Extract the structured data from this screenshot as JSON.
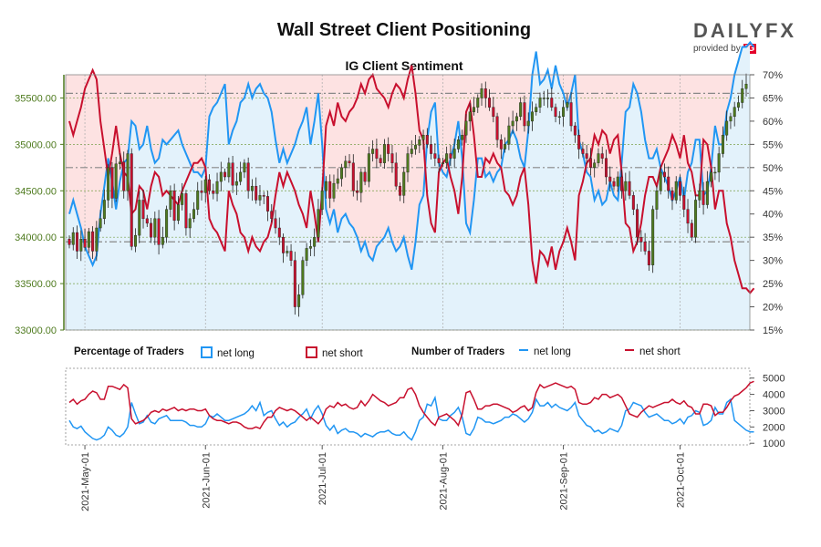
{
  "header": {
    "title": "Wall Street Client Positioning",
    "logo_text": "DAILYFX",
    "logo_sub": "provided by",
    "logo_ig": "IG"
  },
  "colors": {
    "long": "#2196f3",
    "short": "#c8102e",
    "long_fill": "#e3f2fb",
    "short_fill": "#fde2e2",
    "candle_up": "#4e7a1e",
    "candle_down": "#c8102e",
    "axis_green": "#4e7a1e"
  },
  "legend": {
    "pct_label": "Percentage of Traders",
    "pct_long": "net long",
    "pct_short": "net short",
    "num_label": "Number of Traders",
    "num_long": "net long",
    "num_short": "net short"
  },
  "chart_data": {
    "type": "candlestick + line",
    "title": "IG Client Sentiment",
    "price_axis": {
      "ylim": [
        33000,
        35750
      ],
      "ticks": [
        "33000.00",
        "33500.00",
        "34000.00",
        "34500.00",
        "35000.00",
        "35500.00"
      ]
    },
    "sentiment_axis": {
      "ylim": [
        15,
        70
      ],
      "ticks": [
        "15%",
        "20%",
        "25%",
        "30%",
        "35%",
        "40%",
        "45%",
        "50%",
        "55%",
        "60%",
        "65%",
        "70%"
      ],
      "reference_lines": [
        66,
        50,
        34
      ]
    },
    "count_axis": {
      "ylim": [
        900,
        5600
      ],
      "ticks": [
        "1000",
        "2000",
        "3000",
        "4000",
        "5000"
      ]
    },
    "x_ticks": [
      "2021-May-01",
      "2021-Jun-01",
      "2021-Jul-01",
      "2021-Aug-01",
      "2021-Sep-01",
      "2021-Oct-01"
    ],
    "series": [
      {
        "name": "net long",
        "panel": "percentage",
        "values": [
          40,
          43,
          40,
          37,
          33,
          31,
          29,
          31,
          40,
          46,
          52,
          47,
          41,
          47,
          51,
          52,
          60,
          59,
          54,
          55,
          59,
          54,
          51,
          52,
          56,
          55,
          56,
          57,
          58,
          55,
          53,
          51,
          49,
          49,
          48,
          50,
          61,
          63,
          64,
          66,
          68,
          55,
          58,
          60,
          64,
          65,
          68,
          65,
          67,
          68,
          66,
          65,
          62,
          56,
          51,
          54,
          51,
          53,
          55,
          58,
          60,
          63,
          55,
          60,
          66,
          55,
          41,
          38,
          41,
          36,
          39,
          40,
          38,
          37,
          35,
          32,
          34,
          31,
          30,
          33,
          34,
          35,
          37,
          34,
          32,
          33,
          35,
          31,
          28,
          34,
          42,
          44,
          56,
          62,
          64,
          51,
          49,
          48,
          52,
          55,
          60,
          52,
          38,
          36,
          43,
          52,
          52,
          48,
          49,
          47,
          49,
          50,
          55,
          56,
          58,
          56,
          52,
          50,
          58,
          70,
          75,
          68,
          69,
          71,
          67,
          72,
          68,
          66,
          63,
          66,
          70,
          56,
          53,
          49,
          48,
          43,
          45,
          42,
          43,
          47,
          44,
          43,
          51,
          62,
          63,
          68,
          66,
          62,
          56,
          52,
          52,
          54,
          50,
          48,
          46,
          43,
          45,
          48,
          43,
          49,
          51,
          56,
          56,
          44,
          45,
          50,
          59,
          55,
          55,
          62,
          65,
          70,
          73,
          76,
          76,
          77,
          76
        ]
      },
      {
        "name": "net short",
        "panel": "percentage",
        "values": [
          60,
          57,
          60,
          63,
          67,
          69,
          71,
          69,
          60,
          54,
          48,
          53,
          59,
          53,
          49,
          48,
          40,
          41,
          46,
          45,
          41,
          46,
          49,
          48,
          44,
          45,
          44,
          43,
          42,
          45,
          47,
          49,
          51,
          51,
          52,
          50,
          39,
          37,
          36,
          34,
          32,
          45,
          42,
          40,
          36,
          35,
          32,
          35,
          33,
          32,
          34,
          35,
          38,
          44,
          49,
          46,
          49,
          47,
          45,
          42,
          40,
          37,
          45,
          40,
          34,
          45,
          59,
          62,
          59,
          64,
          61,
          60,
          62,
          63,
          65,
          68,
          66,
          69,
          70,
          67,
          66,
          65,
          63,
          66,
          68,
          67,
          65,
          69,
          72,
          66,
          58,
          56,
          44,
          38,
          36,
          49,
          51,
          52,
          48,
          45,
          40,
          48,
          62,
          64,
          57,
          48,
          48,
          52,
          51,
          53,
          51,
          50,
          45,
          44,
          42,
          44,
          48,
          50,
          42,
          30,
          25,
          32,
          31,
          29,
          33,
          28,
          32,
          34,
          37,
          34,
          30,
          44,
          47,
          51,
          52,
          57,
          55,
          58,
          57,
          53,
          56,
          57,
          49,
          38,
          37,
          32,
          34,
          38,
          44,
          48,
          48,
          46,
          50,
          52,
          54,
          57,
          55,
          52,
          57,
          51,
          49,
          44,
          44,
          56,
          55,
          50,
          41,
          45,
          45,
          38,
          35,
          30,
          27,
          24,
          24,
          23,
          24
        ]
      },
      {
        "name": "net long",
        "panel": "count",
        "values": [
          2400,
          2000,
          1900,
          2050,
          1700,
          1500,
          1300,
          1200,
          1300,
          1500,
          2000,
          1800,
          1500,
          1400,
          1600,
          2000,
          3500,
          2800,
          2200,
          2300,
          2700,
          2300,
          2200,
          2500,
          2600,
          2700,
          2400,
          2400,
          2400,
          2400,
          2300,
          2100,
          2100,
          2000,
          2000,
          2200,
          2700,
          2600,
          2800,
          2600,
          2400,
          2400,
          2500,
          2600,
          2700,
          2800,
          3000,
          3300,
          3000,
          3500,
          2700,
          2900,
          3000,
          2500,
          2100,
          2300,
          2000,
          2200,
          2300,
          2600,
          2800,
          3100,
          2500,
          3000,
          3300,
          2800,
          2100,
          1800,
          2100,
          1600,
          1800,
          1900,
          1700,
          1700,
          1600,
          1400,
          1600,
          1500,
          1400,
          1600,
          1700,
          1700,
          1800,
          1600,
          1500,
          1500,
          1700,
          1400,
          1200,
          1700,
          2400,
          2600,
          3400,
          3300,
          3800,
          2500,
          2400,
          2400,
          2700,
          2900,
          3200,
          2600,
          1600,
          1500,
          1900,
          2600,
          2500,
          2300,
          2300,
          2200,
          2300,
          2400,
          2600,
          2600,
          2800,
          2700,
          2500,
          2300,
          2500,
          2900,
          3700,
          3300,
          3300,
          3500,
          3200,
          3400,
          3200,
          3100,
          3000,
          3200,
          3500,
          2700,
          2400,
          2100,
          2000,
          1700,
          1800,
          1600,
          1700,
          1900,
          1800,
          1700,
          2100,
          3000,
          3100,
          3500,
          3400,
          3300,
          2900,
          2600,
          2700,
          2800,
          2600,
          2400,
          2400,
          2200,
          2300,
          2500,
          2200,
          2600,
          2700,
          3000,
          2900,
          2100,
          2200,
          2400,
          3200,
          2800,
          2800,
          3500,
          3700,
          2400,
          2200,
          2000,
          1800,
          1700,
          1700
        ]
      },
      {
        "name": "net short",
        "panel": "count",
        "values": [
          3500,
          3700,
          3400,
          3600,
          3700,
          4000,
          4200,
          4100,
          3700,
          3700,
          4500,
          4500,
          4400,
          4300,
          4600,
          4400,
          2500,
          2200,
          2300,
          2400,
          2600,
          2900,
          3000,
          2900,
          3100,
          3000,
          3100,
          3200,
          3000,
          3100,
          3000,
          3100,
          3100,
          3000,
          3000,
          3100,
          2700,
          2500,
          2400,
          2400,
          2300,
          2200,
          2300,
          2300,
          2200,
          2000,
          1900,
          1900,
          2000,
          1900,
          2300,
          2600,
          2600,
          3000,
          3200,
          3100,
          3000,
          3100,
          3000,
          2800,
          2600,
          2400,
          2600,
          2400,
          2200,
          2500,
          3100,
          3300,
          3200,
          3500,
          3300,
          3400,
          3200,
          3100,
          3200,
          3600,
          3300,
          3600,
          4000,
          3800,
          3600,
          3500,
          3300,
          3400,
          3500,
          3800,
          3800,
          4300,
          4400,
          4000,
          3300,
          2900,
          2600,
          2300,
          2100,
          2600,
          2700,
          2800,
          2600,
          2400,
          2100,
          2800,
          4100,
          4200,
          3700,
          3100,
          3100,
          3300,
          3300,
          3400,
          3400,
          3300,
          3200,
          3100,
          2900,
          3000,
          3200,
          3300,
          3000,
          3200,
          4100,
          4600,
          4400,
          4500,
          4600,
          4700,
          4600,
          4500,
          4400,
          4500,
          4300,
          3500,
          3400,
          3400,
          3500,
          3800,
          3700,
          4000,
          4000,
          3800,
          3900,
          4000,
          3800,
          3300,
          2800,
          2700,
          2600,
          2900,
          3100,
          3300,
          3200,
          3300,
          3400,
          3500,
          3500,
          3700,
          3500,
          3400,
          3600,
          3300,
          3200,
          2800,
          2800,
          3400,
          3400,
          3300,
          2700,
          2900,
          2900,
          3200,
          3600,
          3900,
          4000,
          4200,
          4400,
          4700,
          4800
        ]
      },
      {
        "name": "US Wall Street 30 (candlestick, close)",
        "panel": "price",
        "values": [
          33920,
          34050,
          33850,
          33980,
          33890,
          34060,
          33850,
          34100,
          34200,
          34400,
          34750,
          34420,
          34790,
          34810,
          34500,
          34900,
          33900,
          34020,
          34400,
          34200,
          34150,
          34000,
          34200,
          33920,
          34000,
          34300,
          34500,
          34180,
          34350,
          34470,
          34100,
          34200,
          34300,
          34500,
          34480,
          34620,
          34500,
          34470,
          34600,
          34700,
          34650,
          34800,
          34560,
          34600,
          34700,
          34800,
          34500,
          34550,
          34400,
          34450,
          34440,
          34280,
          34200,
          34100,
          34000,
          33830,
          33850,
          33750,
          33250,
          33380,
          33750,
          33880,
          33900,
          34000,
          34300,
          34500,
          34600,
          34420,
          34580,
          34630,
          34750,
          34820,
          34800,
          34500,
          34480,
          34700,
          34600,
          34900,
          34950,
          34850,
          34800,
          35000,
          34900,
          34800,
          34550,
          34450,
          34700,
          34900,
          34950,
          34990,
          35050,
          35100,
          35000,
          34900,
          34850,
          34800,
          34800,
          34900,
          34850,
          34950,
          35050,
          35100,
          35250,
          35350,
          35400,
          35500,
          35600,
          35500,
          35400,
          35300,
          35050,
          34950,
          35000,
          35200,
          35250,
          35300,
          35450,
          35200,
          35250,
          35350,
          35400,
          35500,
          35500,
          35500,
          35400,
          35300,
          35300,
          35400,
          35450,
          35200,
          35100,
          34950,
          34900,
          34850,
          34750,
          34800,
          34900,
          34850,
          34650,
          34600,
          34550,
          34650,
          34500,
          34600,
          34450,
          34300,
          34000,
          33950,
          33850,
          33700,
          34300,
          34500,
          34700,
          34650,
          34500,
          34400,
          34600,
          34450,
          34300,
          34150,
          34000,
          34400,
          34500,
          34350,
          34600,
          34700,
          34700,
          34900,
          35100,
          35250,
          35300,
          35400,
          35450,
          35600,
          35650
        ]
      }
    ]
  }
}
